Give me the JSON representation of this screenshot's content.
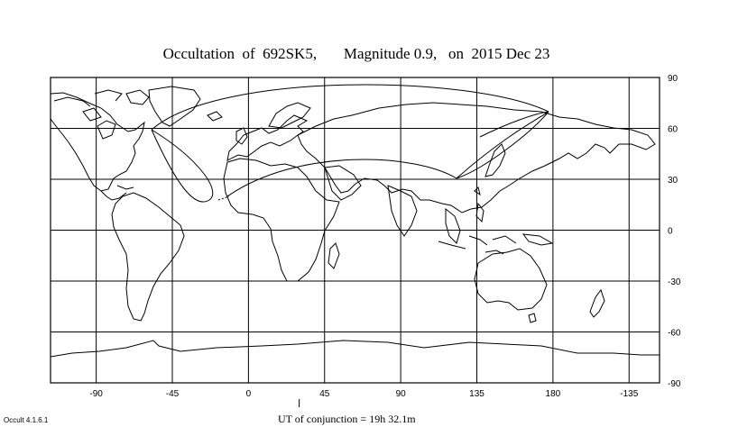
{
  "title": "Occultation  of  692SK5,       Magnitude 0.9,   on  2015 Dec 23",
  "conjunction_text": "UT of conjunction = 19h 32.1m",
  "version_text": "Occult 4.1.6.1",
  "map": {
    "projection": "equirectangular",
    "lon_start": -117,
    "lon_end": 243,
    "lat_top": 90,
    "lat_bottom": -90,
    "x_ticks": [
      "-90",
      "-45",
      "0",
      "45",
      "90",
      "135",
      "180",
      "-135"
    ],
    "x_tick_lons": [
      -90,
      -45,
      0,
      45,
      90,
      135,
      180,
      225
    ],
    "y_ticks": [
      "90",
      "60",
      "30",
      "0",
      "-30",
      "-60",
      "-90"
    ],
    "y_tick_lats": [
      90,
      60,
      30,
      0,
      -30,
      -60,
      -90
    ],
    "conjunction_lon": 30
  }
}
